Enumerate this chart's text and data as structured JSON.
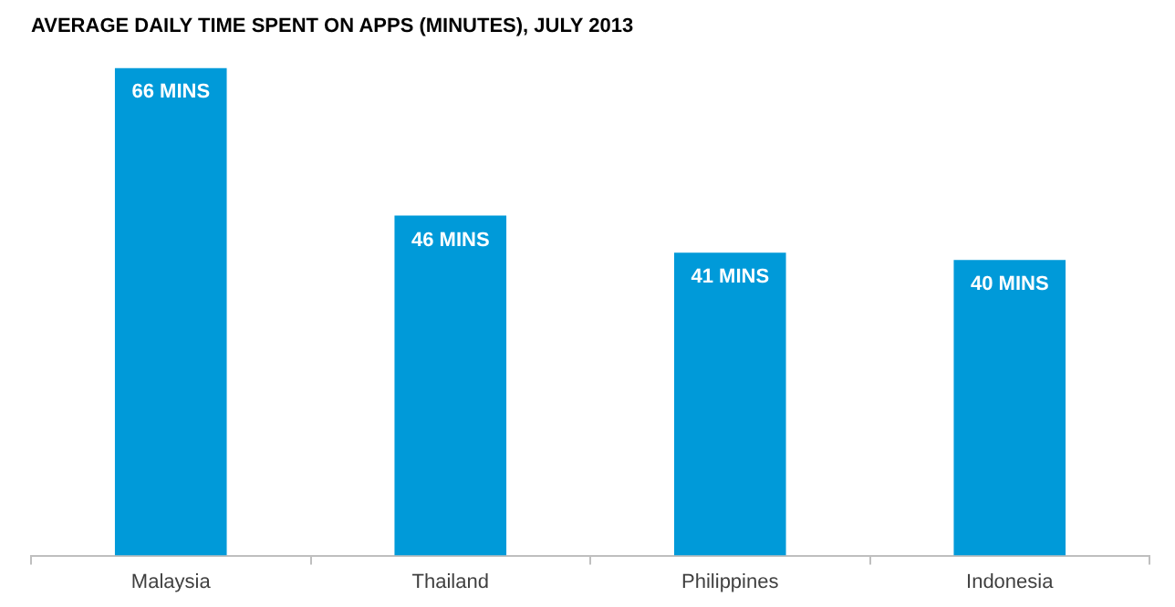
{
  "chart_data": {
    "type": "bar",
    "title": "AVERAGE DAILY TIME SPENT ON APPS (MINUTES), JULY 2013",
    "categories": [
      "Malaysia",
      "Thailand",
      "Philippines",
      "Indonesia"
    ],
    "values": [
      66,
      46,
      41,
      40
    ],
    "value_labels": [
      "66 MINS",
      "46 MINS",
      "41 MINS",
      "40 MINS"
    ],
    "color": "#009ad9",
    "ylim": [
      0,
      66
    ],
    "legend": false
  }
}
